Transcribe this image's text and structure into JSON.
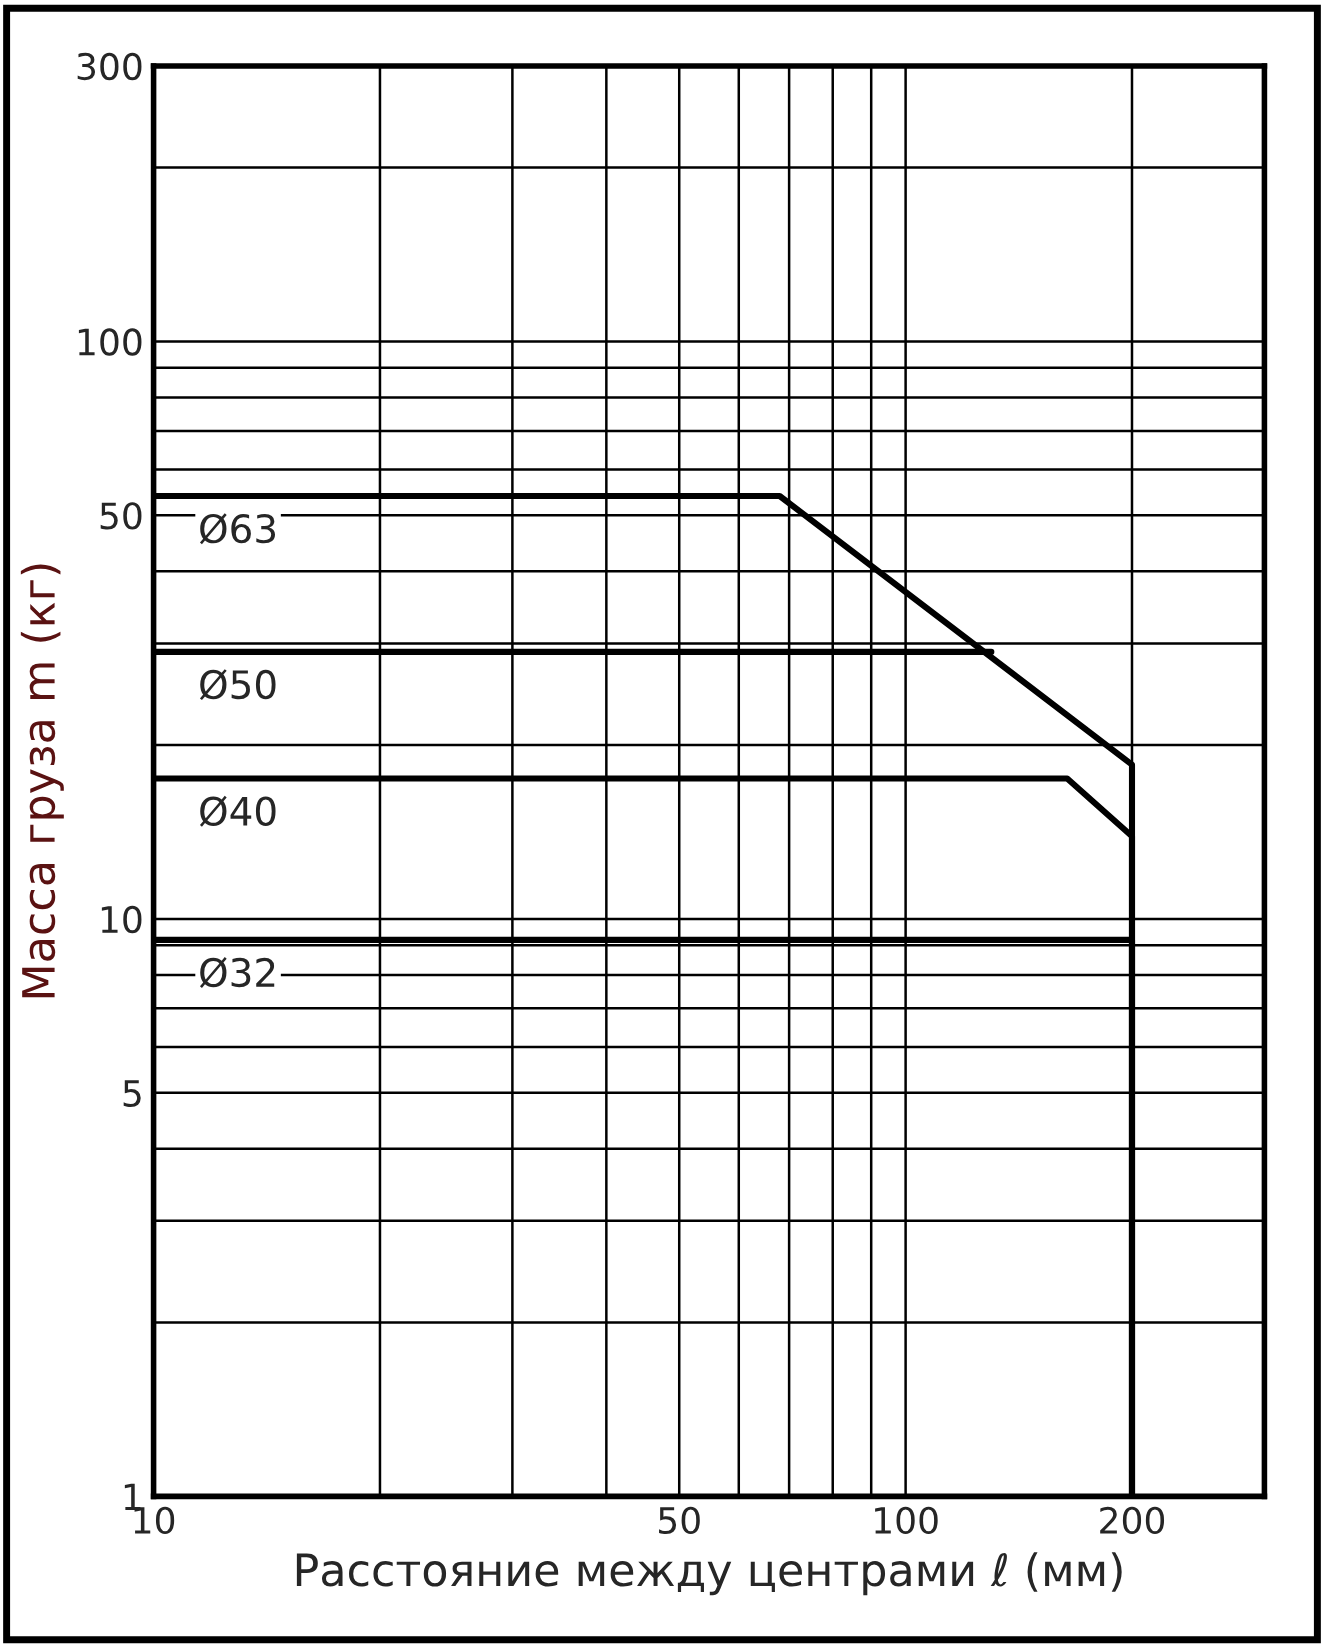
{
  "chart_data": {
    "type": "line",
    "xlabel": "Расстояние между центрами ℓ (мм)",
    "ylabel": "Масса груза m (кг)",
    "log": "xy",
    "grid": true,
    "legend": false,
    "marker": "none",
    "line_style": "solid",
    "xlim": [
      10,
      300
    ],
    "xticks": [
      10,
      {
        "value": 20,
        "label": null
      },
      {
        "value": 30,
        "label": null
      },
      {
        "value": 40,
        "label": null
      },
      50,
      {
        "value": 60,
        "label": null
      },
      {
        "value": 70,
        "label": null
      },
      {
        "value": 80,
        "label": null
      },
      {
        "value": 90,
        "label": null
      },
      100,
      200,
      {
        "value": 300,
        "label": null
      }
    ],
    "ylim": [
      1,
      300
    ],
    "yticks": [
      1,
      {
        "value": 2,
        "label": null
      },
      {
        "value": 3,
        "label": null
      },
      {
        "value": 4,
        "label": null
      },
      5,
      {
        "value": 6,
        "label": null
      },
      {
        "value": 7,
        "label": null
      },
      {
        "value": 8,
        "label": null
      },
      {
        "value": 9,
        "label": null
      },
      10,
      {
        "value": 20,
        "label": null
      },
      {
        "value": 30,
        "label": null
      },
      {
        "value": 40,
        "label": null
      },
      50,
      {
        "value": 60,
        "label": null
      },
      {
        "value": 70,
        "label": null
      },
      {
        "value": 80,
        "label": null
      },
      {
        "value": 90,
        "label": null
      },
      100,
      {
        "value": 200,
        "label": null
      },
      300
    ],
    "series": [
      {
        "name": "Ø63",
        "color": "#000000",
        "x": [
          10,
          68,
          200,
          200
        ],
        "values": [
          54,
          54,
          18.5,
          1
        ]
      },
      {
        "name": "Ø50",
        "color": "#000000",
        "x": [
          10,
          130
        ],
        "values": [
          29,
          29
        ]
      },
      {
        "name": "Ø40",
        "color": "#000000",
        "x": [
          10,
          164,
          200,
          200
        ],
        "values": [
          17.5,
          17.5,
          13.9,
          1
        ]
      },
      {
        "name": "Ø32",
        "color": "#000000",
        "x": [
          10,
          200,
          200
        ],
        "values": [
          9.2,
          9.2,
          1
        ]
      }
    ]
  }
}
